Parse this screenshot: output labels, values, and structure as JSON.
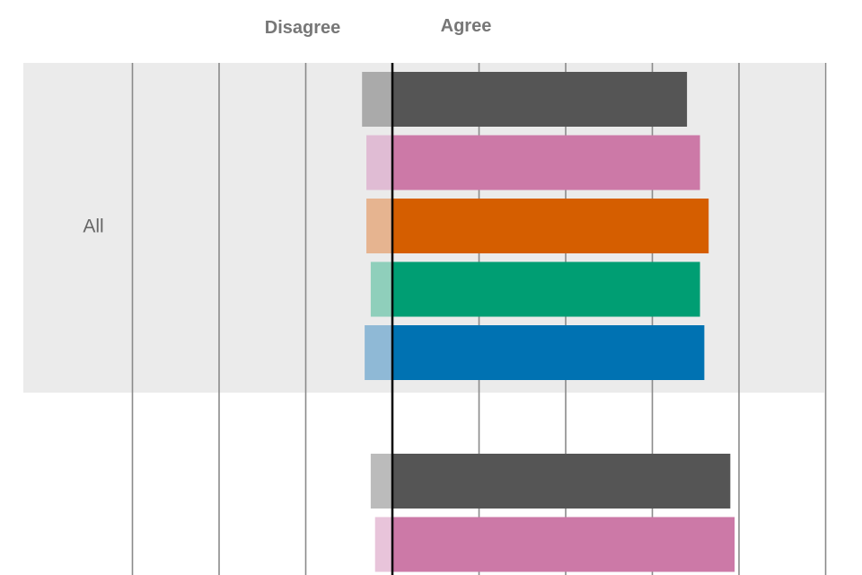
{
  "chart_data": {
    "type": "bar",
    "orientation": "horizontal-diverging",
    "headers": {
      "disagree": "Disagree",
      "agree": "Agree"
    },
    "groups": [
      {
        "label": "All",
        "shaded": true,
        "rows": [
          {
            "color": "#555555",
            "disagree_color": "#aaaaaa",
            "disagree": 3.5,
            "agree": 34
          },
          {
            "color": "#cc79a7",
            "disagree_color": "#e0bcd4",
            "disagree": 3.0,
            "agree": 35.5
          },
          {
            "color": "#d55e00",
            "disagree_color": "#e6b490",
            "disagree": 3.0,
            "agree": 36.5
          },
          {
            "color": "#009e73",
            "disagree_color": "#8fcfbb",
            "disagree": 2.5,
            "agree": 35.5
          },
          {
            "color": "#0072b2",
            "disagree_color": "#8fb9d6",
            "disagree": 3.2,
            "agree": 36
          }
        ]
      },
      {
        "label": "",
        "shaded": false,
        "rows": [
          {
            "color": "#555555",
            "disagree_color": "#bbbbbb",
            "disagree": 2.5,
            "agree": 39
          },
          {
            "color": "#cc79a7",
            "disagree_color": "#e8c4da",
            "disagree": 2.0,
            "agree": 39.5
          }
        ]
      }
    ],
    "xlim": [
      -30,
      50
    ],
    "gridlines": [
      -30,
      -20,
      -10,
      10,
      20,
      30,
      40,
      50
    ],
    "grid": true
  }
}
